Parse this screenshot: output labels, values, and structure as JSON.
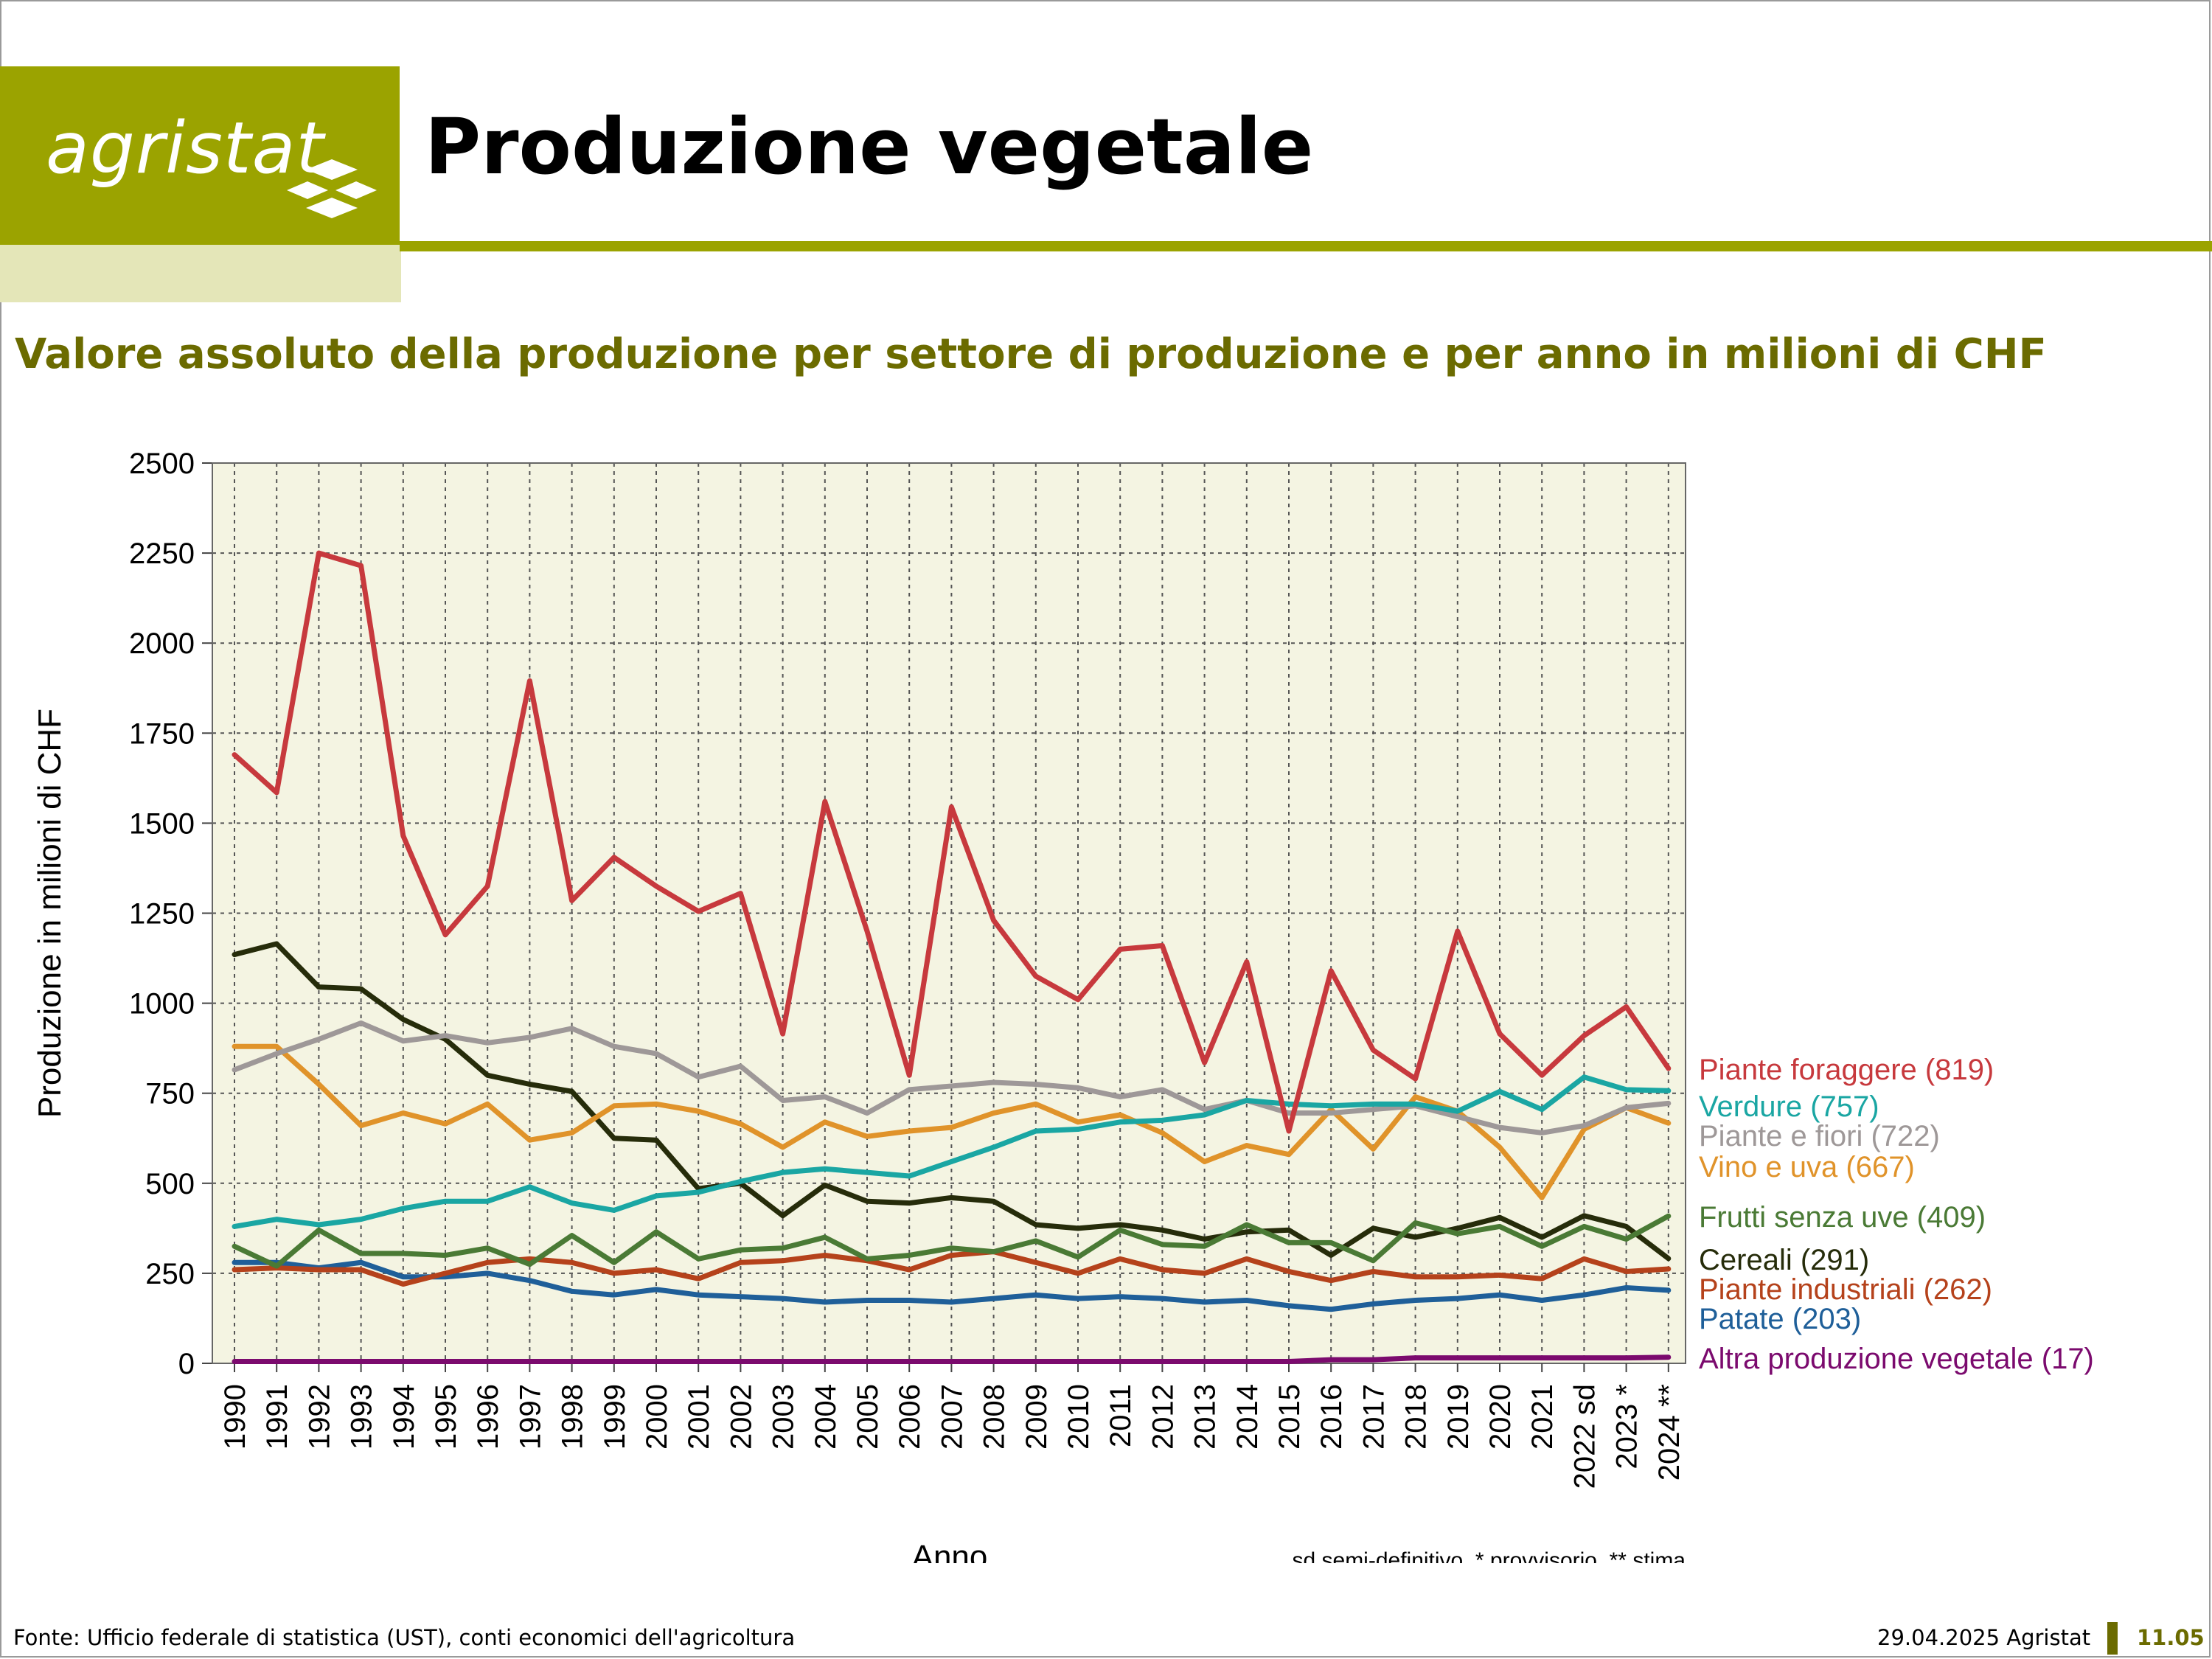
{
  "header": {
    "logo_text": "agristat",
    "title": "Produzione vegetale"
  },
  "subtitle": "Valore assoluto della produzione per settore di produzione e per anno in milioni di CHF",
  "footer": {
    "source": "Fonte: Ufficio federale di statistica (UST), conti economici dell'agricoltura",
    "date": "29.04.2025 Agristat",
    "page": "11.05"
  },
  "colors": {
    "brand": "#9ba300",
    "brand_light": "#e4e6b8",
    "accent_text": "#6b6b00",
    "plot_bg": "#f4f4e2"
  },
  "chart_data": {
    "type": "line",
    "title": "",
    "xlabel": "Anno",
    "ylabel": "Produzione in milioni di CHF",
    "ylim": [
      0,
      2500
    ],
    "yticks": [
      0,
      250,
      500,
      750,
      1000,
      1250,
      1500,
      1750,
      2000,
      2250,
      2500
    ],
    "grid": true,
    "legend": "right, end-of-line labels",
    "note": "sd semi-definitivo, * provvisorio, ** stima",
    "categories": [
      "1990",
      "1991",
      "1992",
      "1993",
      "1994",
      "1995",
      "1996",
      "1997",
      "1998",
      "1999",
      "2000",
      "2001",
      "2002",
      "2003",
      "2004",
      "2005",
      "2006",
      "2007",
      "2008",
      "2009",
      "2010",
      "2011",
      "2012",
      "2013",
      "2014",
      "2015",
      "2016",
      "2017",
      "2018",
      "2019",
      "2020",
      "2021",
      "2022 sd",
      "2023 *",
      "2024 **"
    ],
    "series": [
      {
        "name": "Patate",
        "label": "Patate (203)",
        "color": "#1f5f99",
        "values": [
          280,
          280,
          265,
          280,
          240,
          240,
          250,
          230,
          200,
          190,
          205,
          190,
          185,
          180,
          170,
          175,
          175,
          170,
          180,
          190,
          180,
          185,
          180,
          170,
          175,
          160,
          150,
          165,
          175,
          180,
          190,
          175,
          190,
          210,
          203
        ]
      },
      {
        "name": "Piante industriali",
        "label": "Piante industriali (262)",
        "color": "#b5421b",
        "values": [
          260,
          265,
          260,
          260,
          220,
          250,
          280,
          290,
          280,
          250,
          260,
          235,
          280,
          285,
          300,
          285,
          260,
          300,
          310,
          280,
          250,
          290,
          260,
          250,
          290,
          255,
          230,
          255,
          240,
          240,
          245,
          235,
          290,
          255,
          262
        ]
      },
      {
        "name": "Cereali",
        "label": "Cereali (291)",
        "color": "#262c0a",
        "values": [
          1135,
          1165,
          1045,
          1040,
          955,
          900,
          800,
          775,
          755,
          625,
          620,
          485,
          500,
          410,
          495,
          450,
          445,
          460,
          450,
          385,
          375,
          385,
          370,
          345,
          365,
          370,
          300,
          375,
          350,
          375,
          405,
          350,
          410,
          380,
          291
        ]
      },
      {
        "name": "Frutti senza uve",
        "label": "Frutti senza uve (409)",
        "color": "#4a7a35",
        "values": [
          325,
          270,
          370,
          305,
          305,
          300,
          320,
          275,
          355,
          280,
          365,
          290,
          315,
          320,
          350,
          290,
          300,
          320,
          310,
          340,
          295,
          370,
          330,
          325,
          385,
          335,
          335,
          285,
          390,
          360,
          380,
          325,
          380,
          345,
          409
        ]
      },
      {
        "name": "Vino e uva",
        "label": "Vino e uva (667)",
        "color": "#e0932a",
        "values": [
          880,
          880,
          775,
          660,
          695,
          665,
          720,
          620,
          640,
          715,
          720,
          700,
          665,
          600,
          670,
          630,
          645,
          655,
          695,
          720,
          670,
          690,
          640,
          560,
          605,
          580,
          705,
          595,
          740,
          700,
          600,
          460,
          650,
          710,
          667
        ]
      },
      {
        "name": "Piante e fiori",
        "label": "Piante e fiori (722)",
        "color": "#9e9898",
        "values": [
          815,
          860,
          900,
          945,
          895,
          910,
          890,
          905,
          930,
          880,
          860,
          795,
          825,
          730,
          740,
          695,
          760,
          770,
          780,
          775,
          765,
          740,
          760,
          705,
          730,
          695,
          695,
          705,
          715,
          685,
          655,
          640,
          660,
          710,
          722
        ]
      },
      {
        "name": "Verdure",
        "label": "Verdure (757)",
        "color": "#1aa6a3",
        "values": [
          380,
          400,
          385,
          400,
          430,
          450,
          450,
          490,
          445,
          425,
          465,
          475,
          505,
          530,
          540,
          530,
          520,
          560,
          600,
          645,
          650,
          670,
          675,
          690,
          730,
          720,
          715,
          720,
          720,
          700,
          755,
          705,
          795,
          760,
          757
        ]
      },
      {
        "name": "Piante foraggere",
        "label": "Piante foraggere (819)",
        "color": "#c7393d",
        "values": [
          1690,
          1585,
          2250,
          2215,
          1465,
          1190,
          1325,
          1895,
          1285,
          1405,
          1325,
          1255,
          1305,
          915,
          1560,
          1200,
          800,
          1545,
          1230,
          1075,
          1010,
          1150,
          1160,
          835,
          1115,
          645,
          1090,
          870,
          790,
          1200,
          915,
          800,
          910,
          990,
          819
        ]
      },
      {
        "name": "Altra produzione vegetale",
        "label": "Altra produzione vegetale (17)",
        "color": "#7b0a6e",
        "values": [
          5,
          5,
          5,
          5,
          5,
          5,
          5,
          5,
          5,
          5,
          5,
          5,
          5,
          5,
          5,
          5,
          5,
          5,
          5,
          5,
          5,
          5,
          5,
          5,
          5,
          5,
          10,
          10,
          15,
          15,
          15,
          15,
          15,
          15,
          17
        ]
      }
    ]
  }
}
